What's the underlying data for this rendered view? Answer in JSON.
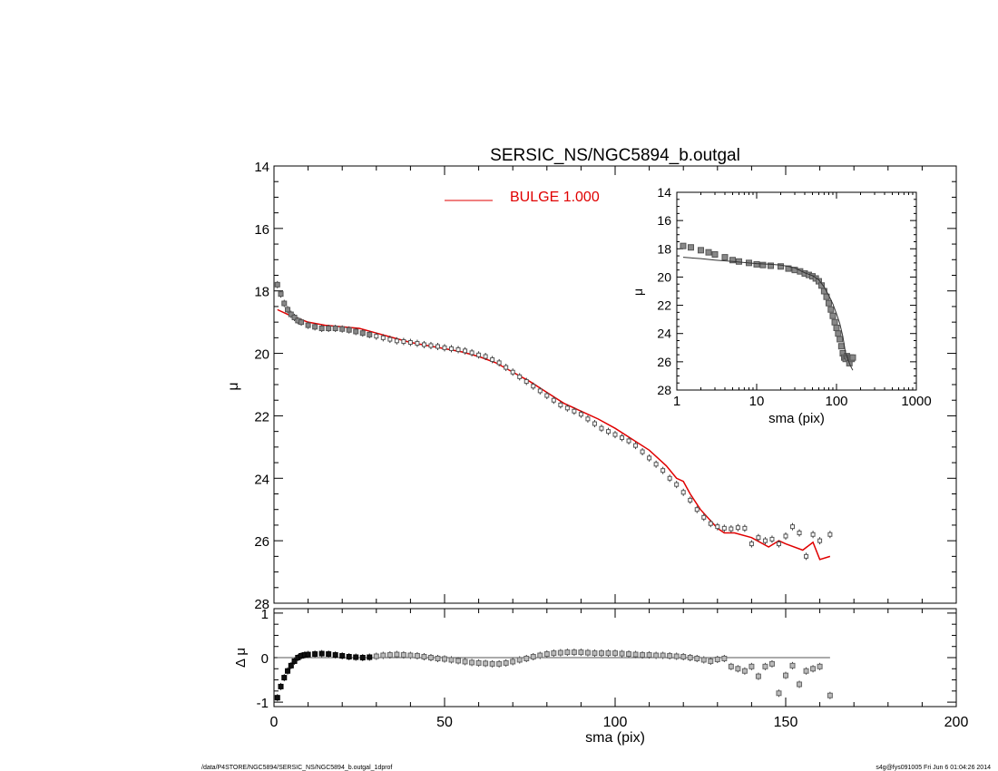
{
  "title": "SERSIC_NS/NGC5894_b.outgal",
  "legend": {
    "label": "BULGE  1.000",
    "color": "#e00000"
  },
  "footer_left": "/data/P4STORE/NGC5894/SERSIC_NS/NGC5894_b.outgal_1dprof",
  "footer_right": "s4g@fys091005  Fri Jun  6 01:04:26 2014",
  "chart_data": [
    {
      "panel": "main",
      "type": "scatter",
      "xlabel": "",
      "ylabel": "μ",
      "xlim": [
        0,
        200
      ],
      "ylim": [
        28,
        14
      ],
      "y_inverted": true,
      "yticks": [
        "14",
        "16",
        "18",
        "20",
        "22",
        "24",
        "26",
        "28"
      ],
      "series": [
        {
          "name": "",
          "kind": "points",
          "x": [
            1,
            2,
            3,
            4,
            5,
            6,
            7,
            8,
            10,
            12,
            14,
            16,
            18,
            20,
            22,
            24,
            26,
            28,
            30,
            32,
            34,
            36,
            38,
            40,
            42,
            44,
            46,
            48,
            50,
            52,
            54,
            56,
            58,
            60,
            62,
            64,
            66,
            68,
            70,
            72,
            74,
            76,
            78,
            80,
            82,
            84,
            86,
            88,
            90,
            92,
            94,
            96,
            98,
            100,
            102,
            104,
            106,
            108,
            110,
            112,
            114,
            116,
            118,
            120,
            122,
            124,
            126,
            128,
            130,
            132,
            134,
            136,
            138,
            140,
            142,
            144,
            146,
            148,
            150,
            152,
            154,
            156,
            158,
            160,
            163
          ],
          "y": [
            17.8,
            18.1,
            18.4,
            18.6,
            18.75,
            18.85,
            18.95,
            19.0,
            19.1,
            19.15,
            19.2,
            19.2,
            19.2,
            19.22,
            19.25,
            19.3,
            19.35,
            19.4,
            19.45,
            19.5,
            19.55,
            19.6,
            19.62,
            19.65,
            19.68,
            19.72,
            19.75,
            19.78,
            19.82,
            19.85,
            19.88,
            19.92,
            19.98,
            20.05,
            20.1,
            20.2,
            20.3,
            20.45,
            20.6,
            20.75,
            20.9,
            21.05,
            21.2,
            21.35,
            21.5,
            21.65,
            21.75,
            21.85,
            21.95,
            22.1,
            22.25,
            22.4,
            22.5,
            22.6,
            22.7,
            22.8,
            22.95,
            23.15,
            23.35,
            23.55,
            23.75,
            24.0,
            24.2,
            24.45,
            24.7,
            25.0,
            25.25,
            25.45,
            25.55,
            25.6,
            25.62,
            25.58,
            25.6,
            26.1,
            25.9,
            26.0,
            25.95,
            26.1,
            25.85,
            25.55,
            25.75,
            26.5,
            25.8,
            26.0,
            25.8
          ]
        },
        {
          "name": "BULGE  1.000",
          "kind": "line",
          "color": "#e00000",
          "x": [
            1,
            5,
            10,
            15,
            20,
            25,
            30,
            35,
            40,
            45,
            50,
            55,
            60,
            65,
            70,
            75,
            80,
            85,
            90,
            95,
            100,
            105,
            110,
            115,
            118,
            120,
            122,
            125,
            130,
            132,
            135,
            140,
            145,
            148,
            150,
            155,
            158,
            160,
            163
          ],
          "y": [
            18.6,
            18.8,
            19.0,
            19.1,
            19.15,
            19.2,
            19.35,
            19.5,
            19.65,
            19.75,
            19.85,
            19.95,
            20.1,
            20.3,
            20.6,
            20.9,
            21.25,
            21.6,
            21.85,
            22.1,
            22.4,
            22.75,
            23.1,
            23.6,
            24.0,
            24.1,
            24.5,
            25.0,
            25.6,
            25.75,
            25.75,
            25.9,
            26.2,
            26.0,
            26.1,
            26.3,
            26.05,
            26.6,
            26.5
          ]
        }
      ]
    },
    {
      "panel": "inset",
      "type": "scatter",
      "xlabel": "sma (pix)",
      "ylabel": "μ",
      "xscale": "log",
      "xlim": [
        1,
        1000
      ],
      "ylim": [
        28,
        14
      ],
      "y_inverted": true,
      "xticks": [
        "1",
        "10",
        "100",
        "1000"
      ],
      "yticks": [
        "14",
        "16",
        "18",
        "20",
        "22",
        "24",
        "26",
        "28"
      ],
      "series": [
        {
          "name": "",
          "kind": "points",
          "x": [
            1.2,
            1.5,
            2,
            2.5,
            3,
            4,
            5,
            6,
            8,
            10,
            12,
            15,
            20,
            25,
            30,
            35,
            40,
            45,
            50,
            55,
            60,
            65,
            70,
            75,
            80,
            85,
            90,
            95,
            100,
            105,
            110,
            115,
            120,
            125,
            130,
            135,
            140,
            145,
            150,
            155,
            160
          ],
          "y": [
            17.8,
            17.9,
            18.1,
            18.25,
            18.4,
            18.6,
            18.8,
            18.9,
            19.0,
            19.1,
            19.15,
            19.2,
            19.25,
            19.4,
            19.5,
            19.6,
            19.75,
            19.85,
            19.95,
            20.1,
            20.3,
            20.6,
            21.0,
            21.4,
            21.85,
            22.3,
            22.75,
            23.2,
            23.6,
            24.0,
            24.4,
            24.9,
            25.4,
            25.7,
            25.8,
            25.6,
            25.7,
            26.1,
            25.7,
            25.8,
            25.7
          ]
        },
        {
          "name": "",
          "kind": "line",
          "color": "#333333",
          "x": [
            1.2,
            2,
            3,
            5,
            8,
            10,
            15,
            20,
            25,
            30,
            40,
            50,
            60,
            70,
            80,
            90,
            100,
            110,
            120,
            130,
            140,
            150,
            160
          ],
          "y": [
            18.6,
            18.7,
            18.8,
            18.9,
            19.0,
            19.05,
            19.1,
            19.15,
            19.25,
            19.35,
            19.7,
            19.9,
            20.2,
            20.7,
            21.3,
            21.9,
            22.6,
            23.3,
            24.2,
            25.4,
            25.9,
            26.3,
            26.6
          ]
        }
      ]
    },
    {
      "panel": "residual",
      "type": "scatter",
      "xlabel": "sma (pix)",
      "ylabel": "Δ μ",
      "xlim": [
        0,
        200
      ],
      "ylim": [
        -1.1,
        1.1
      ],
      "xticks": [
        "0",
        "50",
        "100",
        "150",
        "200"
      ],
      "yticks": [
        "1",
        "0",
        "-1"
      ],
      "series": [
        {
          "name": "",
          "kind": "points",
          "x": [
            1,
            2,
            3,
            4,
            5,
            6,
            7,
            8,
            9,
            10,
            12,
            14,
            16,
            18,
            20,
            22,
            24,
            26,
            28,
            30,
            32,
            34,
            36,
            38,
            40,
            42,
            44,
            46,
            48,
            50,
            52,
            54,
            56,
            58,
            60,
            62,
            64,
            66,
            68,
            70,
            72,
            74,
            76,
            78,
            80,
            82,
            84,
            86,
            88,
            90,
            92,
            94,
            96,
            98,
            100,
            102,
            104,
            106,
            108,
            110,
            112,
            114,
            116,
            118,
            120,
            122,
            124,
            126,
            128,
            130,
            132,
            134,
            136,
            138,
            140,
            142,
            144,
            146,
            148,
            150,
            152,
            154,
            156,
            158,
            160,
            163
          ],
          "y": [
            -0.9,
            -0.65,
            -0.45,
            -0.3,
            -0.18,
            -0.08,
            0.0,
            0.04,
            0.06,
            0.07,
            0.08,
            0.09,
            0.08,
            0.06,
            0.04,
            0.02,
            0.01,
            0.0,
            0.01,
            0.03,
            0.05,
            0.06,
            0.07,
            0.06,
            0.05,
            0.04,
            0.02,
            0.0,
            -0.02,
            -0.03,
            -0.05,
            -0.07,
            -0.09,
            -0.11,
            -0.12,
            -0.13,
            -0.14,
            -0.14,
            -0.12,
            -0.09,
            -0.05,
            -0.02,
            0.02,
            0.05,
            0.08,
            0.1,
            0.11,
            0.12,
            0.12,
            0.12,
            0.11,
            0.1,
            0.1,
            0.1,
            0.1,
            0.09,
            0.08,
            0.07,
            0.06,
            0.06,
            0.05,
            0.05,
            0.04,
            0.03,
            0.02,
            0.0,
            -0.02,
            -0.05,
            -0.08,
            -0.04,
            -0.02,
            -0.2,
            -0.25,
            -0.3,
            -0.2,
            -0.42,
            -0.2,
            -0.14,
            -0.8,
            -0.4,
            -0.18,
            -0.6,
            -0.3,
            -0.25,
            -0.2,
            -0.85
          ]
        },
        {
          "name": "",
          "kind": "line",
          "color": "#555555",
          "x": [
            1,
            163
          ],
          "y": [
            0,
            0
          ]
        }
      ]
    }
  ]
}
